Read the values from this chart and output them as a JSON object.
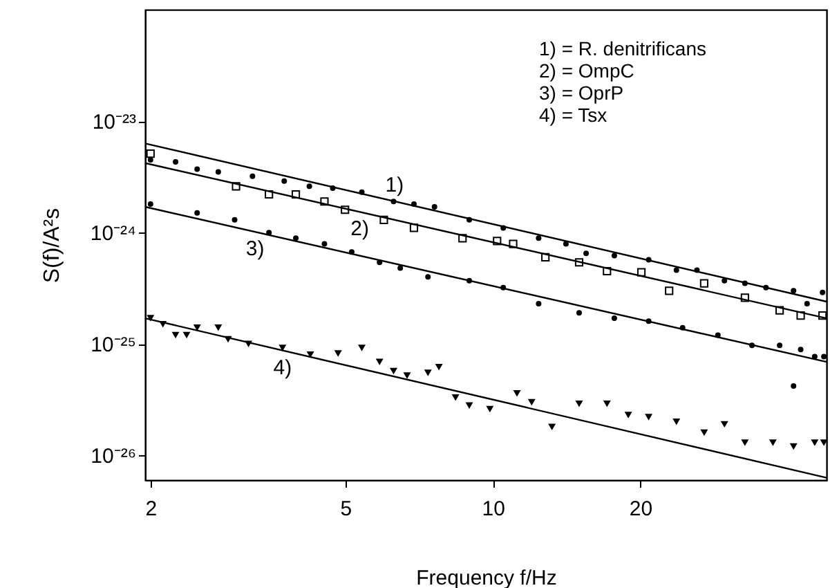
{
  "chart_data": {
    "type": "scatter",
    "xlabel": "Frequency f/Hz",
    "ylabel": "S(f)/A²s",
    "log": "xy",
    "grid": false,
    "xlim": [
      1.95,
      48
    ],
    "xticks": [
      2,
      5,
      10,
      20
    ],
    "ylim": [
      6e-27,
      1e-22
    ],
    "yticks": [
      {
        "value": 1e-23,
        "label": "10⁻²³"
      },
      {
        "value": 1e-24,
        "label": "10⁻²⁴"
      },
      {
        "value": 1e-25,
        "label": "10⁻²⁵"
      },
      {
        "value": 1e-26,
        "label": "10⁻²⁶"
      }
    ],
    "series": [
      {
        "color": "#000000",
        "marker": "circle",
        "x": [
          2,
          2.25,
          2.49,
          2.75,
          3.23,
          3.75,
          4.22,
          4.71,
          5.4,
          6.27,
          6.9,
          7.6,
          8.95,
          10.5,
          12.4,
          14.1,
          15.5,
          17.7,
          20.8,
          23.7,
          26.1,
          29.7,
          32.7,
          36.1,
          41.1,
          43.8,
          47.1
        ],
        "values": [
          4.5e-24,
          4.3e-24,
          3.7e-24,
          3.5e-24,
          3.2e-24,
          2.9e-24,
          2.6e-24,
          2.5e-24,
          2.3e-24,
          1.9e-24,
          1.8e-24,
          1.7e-24,
          1.3e-24,
          1.1e-24,
          8.9e-25,
          7.9e-25,
          6.5e-25,
          6.2e-25,
          5.7e-25,
          4.6e-25,
          4.6e-25,
          3.7e-25,
          3.5e-25,
          3.2e-25,
          3e-25,
          2.3e-25,
          2.9e-25
        ]
      },
      {
        "color": "#000000",
        "marker": "square",
        "x": [
          2,
          2.99,
          3.49,
          3.96,
          4.53,
          4.99,
          5.99,
          6.9,
          8.67,
          10.2,
          11,
          12.8,
          15,
          17.1,
          20.1,
          22.9,
          27,
          32.7,
          38.5,
          42.5,
          47.1
        ],
        "values": [
          5.1e-24,
          2.6e-24,
          2.2e-24,
          2.2e-24,
          1.9e-24,
          1.6e-24,
          1.3e-24,
          1.1e-24,
          8.9e-25,
          8.4e-25,
          7.9e-25,
          6e-25,
          5.4e-25,
          4.5e-25,
          4.4e-25,
          3e-25,
          3.5e-25,
          2.6e-25,
          2e-25,
          1.8e-25,
          1.8e-25
        ]
      },
      {
        "color": "#000000",
        "marker": "circle",
        "x": [
          2,
          2.49,
          2.97,
          3.49,
          3.96,
          4.53,
          5.15,
          5.87,
          6.47,
          7.37,
          8.95,
          10.5,
          12.4,
          15,
          17.7,
          20.8,
          24.4,
          28.8,
          33.8,
          38.5,
          41.1,
          42.5,
          45.4,
          47.4
        ],
        "values": [
          1.8e-24,
          1.5e-24,
          1.3e-24,
          1e-24,
          8.9e-25,
          7.9e-25,
          6.7e-25,
          5.4e-25,
          4.8e-25,
          4e-25,
          3.7e-25,
          3.2e-25,
          2.3e-25,
          1.9e-25,
          1.7e-25,
          1.6e-25,
          1.4e-25,
          1.2e-25,
          9.7e-26,
          9.7e-26,
          4.2e-26,
          8.9e-26,
          7.7e-26,
          7.7e-26
        ]
      },
      {
        "color": "#000000",
        "marker": "triangle",
        "x": [
          2,
          2.12,
          2.25,
          2.37,
          2.49,
          2.75,
          2.88,
          3.17,
          3.72,
          4.24,
          4.83,
          5.4,
          5.87,
          6.27,
          6.68,
          7.37,
          7.76,
          8.39,
          8.95,
          9.86,
          11.2,
          12,
          13.2,
          15,
          17.1,
          18.9,
          20.8,
          23.7,
          27,
          29.7,
          32.7,
          37.3,
          41.1,
          45.4,
          47.4
        ],
        "values": [
          1.7e-25,
          1.5e-25,
          1.2e-25,
          1.2e-25,
          1.4e-25,
          1.4e-25,
          1.1e-25,
          1e-25,
          9.2e-26,
          8e-26,
          8.2e-26,
          9.2e-26,
          6.9e-26,
          5.7e-26,
          5.2e-26,
          5.5e-26,
          6.2e-26,
          3.3e-26,
          2.8e-26,
          2.6e-26,
          3.6e-26,
          3e-26,
          1.8e-26,
          2.9e-26,
          2.9e-26,
          2.3e-26,
          2.2e-26,
          2e-26,
          1.6e-26,
          1.9e-26,
          1.3e-26,
          1.3e-26,
          1.2e-26,
          1.3e-26,
          1.3e-26
        ]
      },
      {
        "type": "line",
        "color": "#000000",
        "x": [
          1.95,
          48
        ],
        "values": [
          6.3e-24,
          2.4e-25
        ]
      },
      {
        "type": "line",
        "color": "#000000",
        "x": [
          1.95,
          48
        ],
        "values": [
          4.2e-24,
          1.7e-25
        ]
      },
      {
        "type": "line",
        "color": "#000000",
        "x": [
          1.95,
          48
        ],
        "values": [
          1.7e-24,
          6.9e-26
        ]
      },
      {
        "type": "line",
        "color": "#000000",
        "x": [
          1.95,
          48
        ],
        "values": [
          1.7e-25,
          6.3e-27
        ]
      }
    ],
    "annotations": [
      "1) = R. denitrificans",
      "2) = OmpC",
      "3) = OprP",
      "4) = Tsx",
      {
        "text": "1)",
        "x": 6.3,
        "y": 1.9e-24
      },
      {
        "text": "2)",
        "x": 5.35,
        "y": 1.53e-24
      },
      {
        "text": "3)",
        "x": 3.27,
        "y": 1.01e-24
      },
      {
        "text": "4)",
        "x": 3.72,
        "y": 8.7e-26
      }
    ]
  }
}
